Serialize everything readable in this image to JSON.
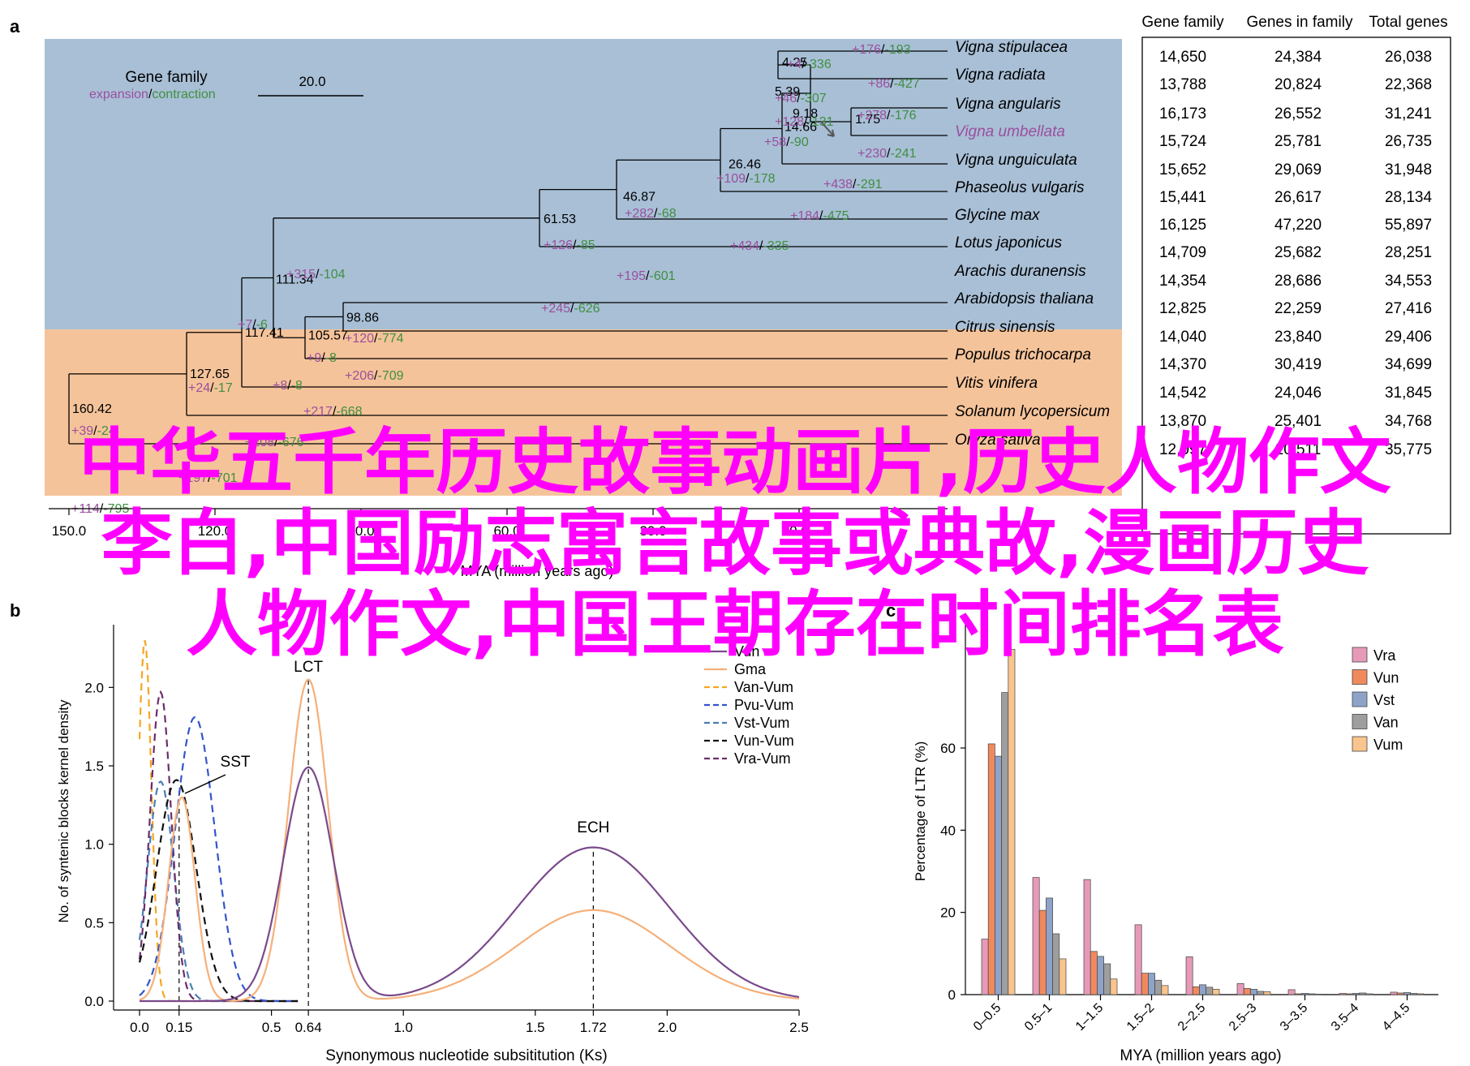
{
  "panel_a": {
    "label": "a",
    "legend": {
      "title": "Gene family",
      "expansion": "expansion",
      "separator": "/",
      "contraction": "contraction",
      "scale_value": "20.0"
    },
    "axis": {
      "ticks": [
        "150.0",
        "120.0",
        "90.0",
        "60.0",
        "30.0",
        "0.0"
      ],
      "label": "MYA (million years ago)"
    },
    "species": [
      {
        "name": "Vigna stipulacea",
        "highlight": false
      },
      {
        "name": "Vigna radiata",
        "highlight": false
      },
      {
        "name": "Vigna angularis",
        "highlight": false
      },
      {
        "name": "Vigna umbellata",
        "highlight": true
      },
      {
        "name": "Vigna unguiculata",
        "highlight": false
      },
      {
        "name": "Phaseolus vulgaris",
        "highlight": false
      },
      {
        "name": "Glycine max",
        "highlight": false
      },
      {
        "name": "Lotus japonicus",
        "highlight": false
      },
      {
        "name": "Arachis duranensis",
        "highlight": false
      },
      {
        "name": "Arabidopsis thaliana",
        "highlight": false
      },
      {
        "name": "Citrus sinensis",
        "highlight": false
      },
      {
        "name": "Populus trichocarpa",
        "highlight": false
      },
      {
        "name": "Vitis vinifera",
        "highlight": false
      },
      {
        "name": "Solanum lycopersicum",
        "highlight": false
      },
      {
        "name": "Oryza sativa",
        "highlight": false
      }
    ],
    "node_ages": [
      "4.25",
      "5.39",
      "1.75",
      "9.18",
      "14.66",
      "26.46",
      "46.87",
      "61.53",
      "111.34",
      "98.86",
      "105.57",
      "117.41",
      "127.65",
      "160.42"
    ],
    "branch_changes": [
      {
        "exp": "+176",
        "con": "-193"
      },
      {
        "exp": "+4",
        "con": "-336"
      },
      {
        "exp": "+86",
        "con": "-427"
      },
      {
        "exp": "+46",
        "con": "-307"
      },
      {
        "exp": "+278",
        "con": "-176"
      },
      {
        "exp": "+128",
        "con": "-131"
      },
      {
        "exp": "+58",
        "con": "-90"
      },
      {
        "exp": "+230",
        "con": "-241"
      },
      {
        "exp": "+109",
        "con": "-178"
      },
      {
        "exp": "+438",
        "con": "-291"
      },
      {
        "exp": "+282",
        "con": "-68"
      },
      {
        "exp": "+184",
        "con": "-475"
      },
      {
        "exp": "+126",
        "con": "-85"
      },
      {
        "exp": "+434",
        "con": "-335"
      },
      {
        "exp": "+315",
        "con": "-104"
      },
      {
        "exp": "+195",
        "con": "-601"
      },
      {
        "exp": "+245",
        "con": "-626"
      },
      {
        "exp": "+7",
        "con": "-6"
      },
      {
        "exp": "+120",
        "con": "-774"
      },
      {
        "exp": "+9",
        "con": "-8"
      },
      {
        "exp": "+206",
        "con": "-709"
      },
      {
        "exp": "+24",
        "con": "-17"
      },
      {
        "exp": "+8",
        "con": "-8"
      },
      {
        "exp": "+217",
        "con": "-668"
      },
      {
        "exp": "+39",
        "con": "-24"
      },
      {
        "exp": "+208",
        "con": "-676"
      },
      {
        "exp": "+197",
        "con": "-701"
      },
      {
        "exp": "+114",
        "con": "-795"
      }
    ],
    "table": {
      "headers": [
        "Gene family",
        "Genes in family",
        "Total genes"
      ],
      "rows": [
        [
          "14,650",
          "24,384",
          "26,038"
        ],
        [
          "13,788",
          "20,824",
          "22,368"
        ],
        [
          "16,173",
          "26,552",
          "31,241"
        ],
        [
          "15,724",
          "25,781",
          "26,735"
        ],
        [
          "15,652",
          "29,069",
          "31,948"
        ],
        [
          "15,441",
          "26,617",
          "28,134"
        ],
        [
          "16,125",
          "47,220",
          "55,897"
        ],
        [
          "14,709",
          "25,682",
          "28,251"
        ],
        [
          "14,354",
          "28,686",
          "34,553"
        ],
        [
          "12,825",
          "22,259",
          "27,416"
        ],
        [
          "14,040",
          "23,840",
          "29,406"
        ],
        [
          "14,370",
          "30,419",
          "34,699"
        ],
        [
          "14,542",
          "24,046",
          "31,845"
        ],
        [
          "13,870",
          "25,401",
          "34,768"
        ],
        [
          "12,097",
          "20,511",
          "35,775"
        ]
      ]
    }
  },
  "panel_b": {
    "label": "b"
  },
  "panel_c": {
    "label": "c"
  },
  "colors": {
    "expansion": "#9b4f9e",
    "contraction": "#3f8f3f",
    "blue_bg": "#a8bfd6",
    "orange_bg": "#f5c39a",
    "Vra": "#e69ab8",
    "Vun": "#f08a5d",
    "Vst": "#8fa3c9",
    "Van": "#9e9e9e",
    "Vum": "#f9c48d",
    "purple_line": "#7a4a8c",
    "light_orange_line": "#f5b07a",
    "blue_dash": "#3355cc"
  },
  "watermark": {
    "line1": "中华五千年历史故事动画片,历史人物作文",
    "line2": "李白,中国励志寓言故事或典故,漫画历史",
    "line3": "人物作文,中国王朝存在时间排名表"
  },
  "chart_data": [
    {
      "type": "line",
      "title": "",
      "xlabel": "Synonymous nucleotide subsititution (Ks)",
      "ylabel": "No. of syntenic blocks kernel density",
      "xlim": [
        0,
        2.5
      ],
      "ylim": [
        0,
        2.4
      ],
      "x_ticks": [
        "0.0",
        "0.15",
        "0.5",
        "0.64",
        "1.0",
        "1.5",
        "1.72",
        "2.0",
        "2.5"
      ],
      "y_ticks": [
        "0.0",
        "0.5",
        "1.0",
        "1.5",
        "2.0"
      ],
      "peak_labels": [
        {
          "text": "SST",
          "x": 0.15
        },
        {
          "text": "LCT",
          "x": 0.64
        },
        {
          "text": "ECH",
          "x": 1.72
        }
      ],
      "series": [
        {
          "name": "Vun",
          "style": "solid",
          "color": "#7a4a8c",
          "peaks": [
            {
              "mu": 0.64,
              "sigma": 0.095,
              "h": 1.49
            },
            {
              "mu": 1.72,
              "sigma": 0.29,
              "h": 0.98
            }
          ]
        },
        {
          "name": "Gma",
          "style": "solid",
          "color": "#f5b07a",
          "peaks": [
            {
              "mu": 0.64,
              "sigma": 0.075,
              "h": 2.05
            },
            {
              "mu": 1.72,
              "sigma": 0.29,
              "h": 0.58
            },
            {
              "mu": 0.16,
              "sigma": 0.05,
              "h": 1.3
            }
          ]
        },
        {
          "name": "Van-Vum",
          "style": "dash",
          "color": "#f5a623",
          "peaks": [
            {
              "mu": 0.02,
              "sigma": 0.025,
              "h": 2.3
            }
          ]
        },
        {
          "name": "Pvu-Vum",
          "style": "dash",
          "color": "#3355cc",
          "peaks": [
            {
              "mu": 0.21,
              "sigma": 0.075,
              "h": 1.81
            }
          ]
        },
        {
          "name": "Vst-Vum",
          "style": "dash",
          "color": "#4a7fb5",
          "peaks": [
            {
              "mu": 0.08,
              "sigma": 0.05,
              "h": 1.4
            }
          ]
        },
        {
          "name": "Vun-Vum",
          "style": "dash",
          "color": "#111111",
          "peaks": [
            {
              "mu": 0.14,
              "sigma": 0.075,
              "h": 1.41
            }
          ]
        },
        {
          "name": "Vra-Vum",
          "style": "dash",
          "color": "#6b2d6b",
          "peaks": [
            {
              "mu": 0.08,
              "sigma": 0.04,
              "h": 1.97
            }
          ]
        }
      ]
    },
    {
      "type": "bar",
      "title": "",
      "xlabel": "MYA (million years ago)",
      "ylabel": "Percentage of LTR (%)",
      "ylim": [
        0,
        90
      ],
      "y_ticks": [
        "0",
        "20",
        "40",
        "60"
      ],
      "categories": [
        "0–0.5",
        "0.5–1",
        "1–1.5",
        "1.5–2",
        "2–2.5",
        "2.5–3",
        "3–3.5",
        "3.5–4",
        "4–4.5"
      ],
      "series": [
        {
          "name": "Vra",
          "values": [
            13.5,
            28.5,
            28,
            17,
            9.2,
            2.7,
            1.2,
            0.3,
            0.6
          ]
        },
        {
          "name": "Vun",
          "values": [
            61,
            20.5,
            10.5,
            5.2,
            1.9,
            1.5,
            0.2,
            0.2,
            0.4
          ]
        },
        {
          "name": "Vst",
          "values": [
            58,
            23.5,
            9.3,
            5.2,
            2.4,
            1.3,
            0.3,
            0.3,
            0.5
          ]
        },
        {
          "name": "Van",
          "values": [
            73.5,
            14.8,
            7.5,
            3.5,
            1.8,
            0.8,
            0.2,
            0.4,
            0.3
          ]
        },
        {
          "name": "Vum",
          "values": [
            84,
            8.7,
            3.8,
            2.2,
            1.3,
            0.7,
            0.1,
            0.2,
            0.2
          ]
        }
      ]
    }
  ]
}
